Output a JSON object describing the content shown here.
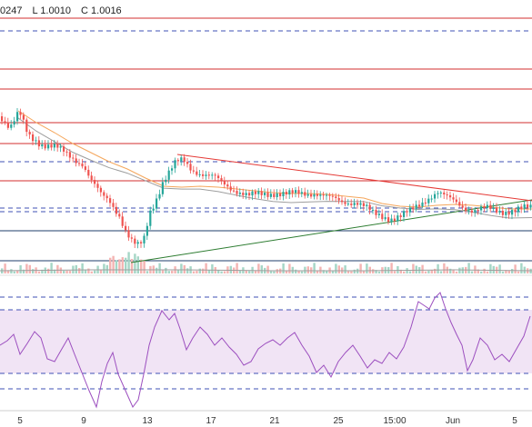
{
  "legend": {
    "high_fragment": "0247",
    "low": "L 1.0010",
    "close": "C 1.0016"
  },
  "colors": {
    "up": "#26a69a",
    "down": "#ef5350",
    "resistance": "#d32f2f",
    "support": "#1f3e6b",
    "dashed": "#3f51b5",
    "trend_up": "#2e7d32",
    "trend_down": "#e53935",
    "ma": "#f5a65b",
    "ma2": "#9e9e9e",
    "rsi": "#9c4fbf",
    "rsi_band": "#f1e4f5",
    "volume_up": "#a5d6c6",
    "volume_down": "#f4b4b2",
    "axis_text": "#333333"
  },
  "chart_data": {
    "type": "candlestick",
    "x_tick_labels": [
      "5",
      "9",
      "13",
      "17",
      "21",
      "25",
      "15:00",
      "Jun",
      "5"
    ],
    "price_path": [
      [
        0,
        128
      ],
      [
        10,
        140
      ],
      [
        20,
        124
      ],
      [
        30,
        150
      ],
      [
        45,
        158
      ],
      [
        60,
        162
      ],
      [
        75,
        172
      ],
      [
        90,
        180
      ],
      [
        100,
        200
      ],
      [
        110,
        215
      ],
      [
        120,
        222
      ],
      [
        130,
        236
      ],
      [
        138,
        256
      ],
      [
        145,
        268
      ],
      [
        152,
        272
      ],
      [
        158,
        262
      ],
      [
        163,
        235
      ],
      [
        170,
        220
      ],
      [
        178,
        200
      ],
      [
        185,
        190
      ],
      [
        192,
        180
      ],
      [
        200,
        176
      ],
      [
        210,
        186
      ],
      [
        222,
        192
      ],
      [
        235,
        196
      ],
      [
        248,
        204
      ],
      [
        260,
        210
      ],
      [
        272,
        216
      ],
      [
        285,
        214
      ],
      [
        300,
        212
      ],
      [
        315,
        214
      ],
      [
        330,
        213
      ],
      [
        345,
        212
      ],
      [
        360,
        218
      ],
      [
        375,
        222
      ],
      [
        390,
        222
      ],
      [
        400,
        228
      ],
      [
        410,
        236
      ],
      [
        420,
        238
      ],
      [
        430,
        240
      ],
      [
        440,
        238
      ],
      [
        450,
        233
      ],
      [
        460,
        225
      ],
      [
        470,
        217
      ],
      [
        480,
        212
      ],
      [
        490,
        218
      ],
      [
        500,
        222
      ],
      [
        510,
        228
      ],
      [
        520,
        232
      ],
      [
        535,
        230
      ],
      [
        550,
        232
      ],
      [
        565,
        232
      ],
      [
        575,
        230
      ],
      [
        585,
        228
      ]
    ],
    "rsi_path": [
      [
        0,
        380
      ],
      [
        8,
        375
      ],
      [
        15,
        368
      ],
      [
        22,
        390
      ],
      [
        30,
        378
      ],
      [
        38,
        365
      ],
      [
        45,
        372
      ],
      [
        52,
        395
      ],
      [
        60,
        398
      ],
      [
        68,
        384
      ],
      [
        75,
        372
      ],
      [
        82,
        390
      ],
      [
        90,
        410
      ],
      [
        98,
        430
      ],
      [
        106,
        448
      ],
      [
        112,
        420
      ],
      [
        118,
        400
      ],
      [
        124,
        388
      ],
      [
        130,
        412
      ],
      [
        138,
        430
      ],
      [
        146,
        448
      ],
      [
        152,
        440
      ],
      [
        158,
        412
      ],
      [
        164,
        380
      ],
      [
        170,
        360
      ],
      [
        178,
        342
      ],
      [
        186,
        352
      ],
      [
        192,
        345
      ],
      [
        198,
        362
      ],
      [
        205,
        385
      ],
      [
        212,
        372
      ],
      [
        220,
        360
      ],
      [
        228,
        368
      ],
      [
        236,
        380
      ],
      [
        244,
        372
      ],
      [
        252,
        382
      ],
      [
        260,
        390
      ],
      [
        268,
        402
      ],
      [
        276,
        398
      ],
      [
        284,
        384
      ],
      [
        292,
        378
      ],
      [
        300,
        374
      ],
      [
        308,
        380
      ],
      [
        316,
        372
      ],
      [
        324,
        366
      ],
      [
        332,
        380
      ],
      [
        340,
        392
      ],
      [
        348,
        410
      ],
      [
        356,
        402
      ],
      [
        364,
        415
      ],
      [
        372,
        398
      ],
      [
        380,
        388
      ],
      [
        388,
        380
      ],
      [
        396,
        392
      ],
      [
        404,
        405
      ],
      [
        412,
        396
      ],
      [
        420,
        400
      ],
      [
        428,
        388
      ],
      [
        436,
        395
      ],
      [
        444,
        382
      ],
      [
        452,
        360
      ],
      [
        460,
        332
      ],
      [
        466,
        336
      ],
      [
        472,
        340
      ],
      [
        478,
        328
      ],
      [
        484,
        322
      ],
      [
        490,
        340
      ],
      [
        496,
        355
      ],
      [
        502,
        368
      ],
      [
        508,
        380
      ],
      [
        514,
        408
      ],
      [
        520,
        396
      ],
      [
        528,
        372
      ],
      [
        536,
        380
      ],
      [
        544,
        396
      ],
      [
        552,
        390
      ],
      [
        560,
        398
      ],
      [
        568,
        384
      ],
      [
        576,
        370
      ],
      [
        583,
        348
      ]
    ],
    "ma_path": [
      [
        20,
        122
      ],
      [
        40,
        135
      ],
      [
        60,
        146
      ],
      [
        80,
        158
      ],
      [
        100,
        168
      ],
      [
        120,
        178
      ],
      [
        140,
        186
      ],
      [
        160,
        196
      ],
      [
        180,
        205
      ],
      [
        200,
        206
      ],
      [
        220,
        205
      ],
      [
        240,
        206
      ],
      [
        260,
        208
      ],
      [
        280,
        210
      ],
      [
        300,
        212
      ],
      [
        320,
        213
      ],
      [
        340,
        213
      ],
      [
        360,
        214
      ],
      [
        380,
        216
      ],
      [
        400,
        218
      ],
      [
        420,
        224
      ],
      [
        440,
        227
      ],
      [
        460,
        228
      ],
      [
        480,
        226
      ],
      [
        500,
        225
      ],
      [
        520,
        226
      ],
      [
        540,
        228
      ],
      [
        560,
        230
      ],
      [
        585,
        230
      ]
    ],
    "resistance_lines_y": [
      20,
      76,
      98,
      135,
      158,
      199
    ],
    "dashed_lines_y": [
      34,
      178,
      229,
      233,
      327,
      341,
      411,
      428
    ],
    "support_lines_y": [
      254,
      287
    ],
    "trend_up": [
      [
        144,
        289
      ],
      [
        585,
        220
      ]
    ],
    "trend_down": [
      [
        195,
        170
      ],
      [
        585,
        221
      ]
    ],
    "rsi_band": [
      341,
      411
    ]
  }
}
